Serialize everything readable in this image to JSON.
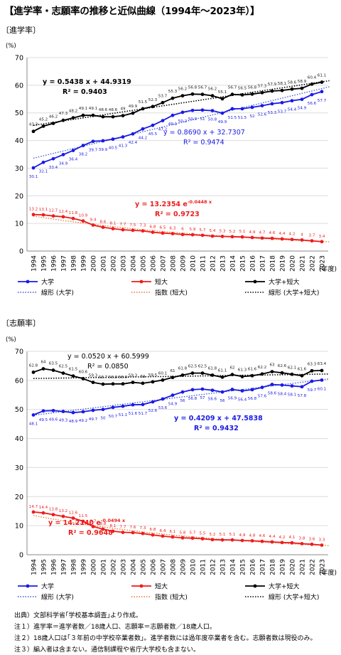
{
  "title": "【進学率・志願率の推移と近似曲線（1994年～2023年）】",
  "colors": {
    "univ": "#1a1ae6",
    "junior": "#ee1c1c",
    "total": "#000000",
    "univ_trend": "#3a56d6",
    "junior_trend": "#e8742c"
  },
  "chart_data": [
    {
      "type": "line",
      "section_label": "〔進学率〕",
      "ylabel": "(%)",
      "xlabel": "(年度)",
      "ylim": [
        0,
        70
      ],
      "grid": true,
      "legend_position": "bottom",
      "x": [
        "1994",
        "1995",
        "1996",
        "1997",
        "1998",
        "1999",
        "2000",
        "2001",
        "2002",
        "2003",
        "2004",
        "2005",
        "2006",
        "2007",
        "2008",
        "2009",
        "2010",
        "2011",
        "2012",
        "2013",
        "2014",
        "2015",
        "2016",
        "2017",
        "2018",
        "2019",
        "2020",
        "2021",
        "2022",
        "2023"
      ],
      "series": [
        {
          "name": "大学",
          "values": [
            30.1,
            32.1,
            33.4,
            34.9,
            36.4,
            38.2,
            39.7,
            39.9,
            40.5,
            41.3,
            42.4,
            44.2,
            45.5,
            47.2,
            49.1,
            50.2,
            50.9,
            51.0,
            50.8,
            49.9,
            51.5,
            51.5,
            52.0,
            52.6,
            53.3,
            53.7,
            54.4,
            54.9,
            56.6,
            57.7
          ]
        },
        {
          "name": "短大",
          "values": [
            13.2,
            13.1,
            12.7,
            12.4,
            11.8,
            10.9,
            9.4,
            8.6,
            8.1,
            7.7,
            7.5,
            7.3,
            6.8,
            6.5,
            6.3,
            6.0,
            5.9,
            5.7,
            5.4,
            5.3,
            5.2,
            5.1,
            4.9,
            4.7,
            4.6,
            4.4,
            4.2,
            4.0,
            3.7,
            3.4
          ]
        },
        {
          "name": "大学+短大",
          "values": [
            43.3,
            45.2,
            46.2,
            47.3,
            48.2,
            49.1,
            49.1,
            48.6,
            48.6,
            49.0,
            49.9,
            51.5,
            52.3,
            53.7,
            55.3,
            56.2,
            56.8,
            56.7,
            56.2,
            55.1,
            56.7,
            56.5,
            56.8,
            57.3,
            57.9,
            58.1,
            58.6,
            58.9,
            60.4,
            61.1
          ]
        }
      ],
      "trendlines": [
        {
          "name": "線形 (大学)",
          "kind": "linear",
          "slope": 0.869,
          "intercept": 32.7307,
          "equation": "y = 0.8690 x + 32.7307",
          "r2": "R² = 0.9474"
        },
        {
          "name": "指数 (短大)",
          "kind": "exponential",
          "a": 13.2354,
          "b": -0.0448,
          "equation_base": "y = 13.2354 e",
          "equation_exp": "-0.0448 x",
          "r2": "R² = 0.9723"
        },
        {
          "name": "線形 (大学+短大)",
          "kind": "linear",
          "slope": 0.5438,
          "intercept": 44.9319,
          "equation": "y = 0.5438 x + 44.9319",
          "r2": "R² = 0.9403"
        }
      ]
    },
    {
      "type": "line",
      "section_label": "〔志願率〕",
      "ylabel": "(%)",
      "xlabel": "(年度)",
      "ylim": [
        0,
        70
      ],
      "grid": true,
      "legend_position": "bottom",
      "x": [
        "1994",
        "1995",
        "1996",
        "1997",
        "1998",
        "1999",
        "2000",
        "2001",
        "2002",
        "2003",
        "2004",
        "2005",
        "2006",
        "2007",
        "2008",
        "2009",
        "2010",
        "2011",
        "2012",
        "2013",
        "2014",
        "2015",
        "2016",
        "2017",
        "2018",
        "2019",
        "2020",
        "2021",
        "2022",
        "2023"
      ],
      "series": [
        {
          "name": "大学",
          "values": [
            48.1,
            49.5,
            49.6,
            49.3,
            48.9,
            49.2,
            49.7,
            50.0,
            50.7,
            51.1,
            51.6,
            51.7,
            52.6,
            53.6,
            54.9,
            56.0,
            56.8,
            57.0,
            56.6,
            56.0,
            56.9,
            56.4,
            56.8,
            57.6,
            58.6,
            58.4,
            58.1,
            57.8,
            59.7,
            60.1
          ]
        },
        {
          "name": "短大",
          "values": [
            14.7,
            14.4,
            13.8,
            13.2,
            12.6,
            11.5,
            9.7,
            8.8,
            8.1,
            7.7,
            7.6,
            7.3,
            6.8,
            6.4,
            6.1,
            5.8,
            5.7,
            5.5,
            5.2,
            5.1,
            5.1,
            4.9,
            4.8,
            4.6,
            4.4,
            4.2,
            4.1,
            3.8,
            3.6,
            3.3
          ]
        },
        {
          "name": "大学+短大",
          "values": [
            62.8,
            64.0,
            63.5,
            62.5,
            61.5,
            60.6,
            59.3,
            58.7,
            58.8,
            58.8,
            59.3,
            59.0,
            59.5,
            60.1,
            61.0,
            61.8,
            62.5,
            62.5,
            61.8,
            61.1,
            62.0,
            61.3,
            61.6,
            62.2,
            63.0,
            62.6,
            62.1,
            61.6,
            63.3,
            63.4
          ]
        }
      ],
      "trendlines": [
        {
          "name": "線形 (大学)",
          "kind": "linear",
          "slope": 0.4209,
          "intercept": 47.5838,
          "equation": "y = 0.4209 x + 47.5838",
          "r2": "R² = 0.9432"
        },
        {
          "name": "指数 (短大)",
          "kind": "exponential",
          "a": 14.214,
          "b": -0.0494,
          "equation_base": "y = 14.2140 e",
          "equation_exp": "-0.0494 x",
          "r2": "R² = 0.9648"
        },
        {
          "name": "線形 (大学+短大)",
          "kind": "linear",
          "slope": 0.052,
          "intercept": 60.5999,
          "equation": "y = 0.0520 x + 60.5999",
          "r2": "R² = 0.0850"
        }
      ]
    }
  ],
  "notes": {
    "source": "出典）文部科学省｢学校基本調査｣より作成。",
    "note1": "注１）進学率＝進学者数／18歳人口、志願率＝志願者数／18歳人口。",
    "note2": "注２）18歳人口は｢３年前の中学校卒業者数｣。進学者数には過年度卒業者を含む。志願者数は現役のみ。",
    "note3": "注３）編入者は含まない。通信制課程や省庁大学校も含まない。"
  }
}
